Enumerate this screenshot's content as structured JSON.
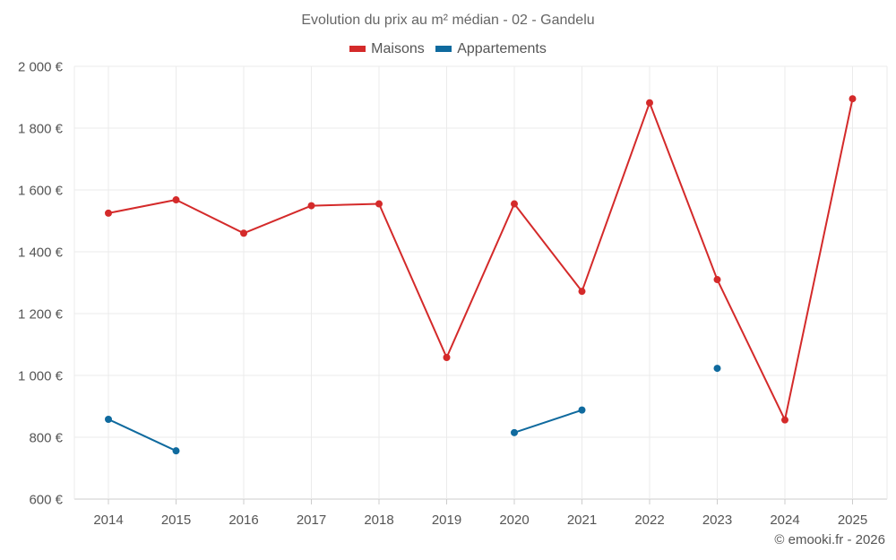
{
  "chart_data": {
    "type": "line",
    "title": "Evolution du prix au m² médian - 02 - Gandelu",
    "categories": [
      "2014",
      "2015",
      "2016",
      "2017",
      "2018",
      "2019",
      "2020",
      "2021",
      "2022",
      "2023",
      "2024",
      "2025"
    ],
    "series": [
      {
        "name": "Maisons",
        "color": "#d42a2a",
        "values": [
          1525,
          1568,
          1460,
          1549,
          1555,
          1058,
          1555,
          1272,
          1882,
          1310,
          856,
          1895
        ]
      },
      {
        "name": "Appartements",
        "color": "#0f6a9e",
        "values": [
          858,
          756,
          null,
          null,
          null,
          null,
          815,
          888,
          null,
          1023,
          null,
          null
        ]
      }
    ],
    "ylim": [
      600,
      2000
    ],
    "yticks": [
      600,
      800,
      1000,
      1200,
      1400,
      1600,
      1800,
      2000
    ],
    "ytick_labels": [
      "600 €",
      "800 €",
      "1 000 €",
      "1 200 €",
      "1 400 €",
      "1 600 €",
      "1 800 €",
      "2 000 €"
    ],
    "xlabel": "",
    "ylabel": "",
    "grid": true,
    "legend_position": "top-center"
  },
  "credit": "© emooki.fr - 2026"
}
